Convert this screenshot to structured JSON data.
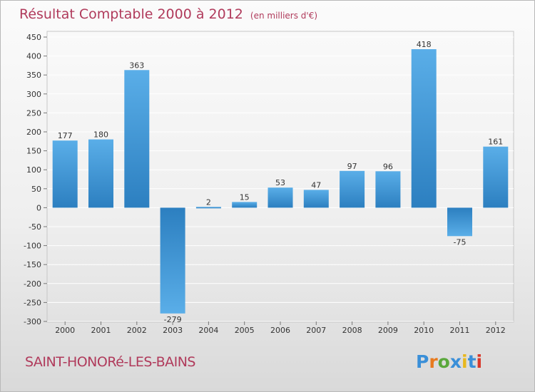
{
  "title": "Résultat Comptable 2000 à 2012",
  "subtitle": "(en milliers d'€)",
  "commune": "SAINT-HONORé-LES-BAINS",
  "brand": "Proxiti",
  "colors": {
    "title": "#b03a5b",
    "bar_light": "#5aaee8",
    "bar_dark": "#2c7fc0",
    "grid": "#ffffff",
    "logo": [
      "#3a8fd8",
      "#e87a1e",
      "#5aa83c",
      "#3a8fd8",
      "#e8b81e",
      "#3a8fd8",
      "#d8382a"
    ]
  },
  "chart_data": {
    "type": "bar",
    "title": "Résultat Comptable 2000 à 2012",
    "unit": "milliers d'€",
    "categories": [
      "2000",
      "2001",
      "2002",
      "2003",
      "2004",
      "2005",
      "2006",
      "2007",
      "2008",
      "2009",
      "2010",
      "2011",
      "2012"
    ],
    "values": [
      177,
      180,
      363,
      -279,
      2,
      15,
      53,
      47,
      97,
      96,
      418,
      -75,
      161
    ],
    "value_labels": [
      "177",
      "180",
      "363",
      "-279",
      "2",
      "15",
      "53",
      "47",
      "97",
      "96",
      "418",
      "-75",
      "161"
    ],
    "ylim": [
      -300,
      450
    ],
    "yticks": [
      450,
      400,
      350,
      300,
      250,
      200,
      150,
      100,
      50,
      0,
      -50,
      -100,
      -150,
      -200,
      -250,
      -300
    ],
    "ytick_labels": [
      "450",
      "400",
      "350",
      "300",
      "250",
      "200",
      "150",
      "100",
      "50",
      "0",
      "-50",
      "-100",
      "-150",
      "-200",
      "-250",
      "-300"
    ],
    "grid": true
  }
}
